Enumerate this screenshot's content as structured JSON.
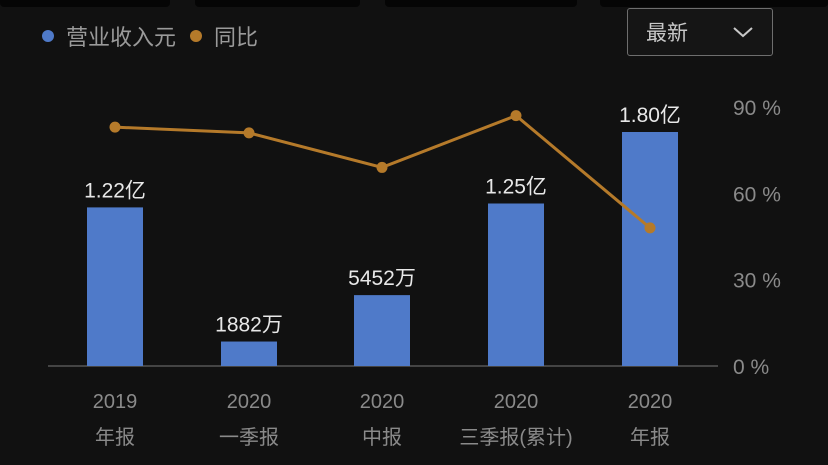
{
  "colors": {
    "background": "#111111",
    "bar": "#4f7ac9",
    "line": "#b57a2a",
    "axis": "#555555",
    "tick_text": "#8a8a8a",
    "label_text": "#e8e8e8"
  },
  "legend": {
    "revenue_label": "营业收入元",
    "yoy_label": "同比"
  },
  "period_select": {
    "value": "最新",
    "icon": "chevron-down-icon"
  },
  "chart_data": {
    "type": "bar",
    "categories": [
      [
        "2019",
        "年报"
      ],
      [
        "2020",
        "一季报"
      ],
      [
        "2020",
        "中报"
      ],
      [
        "2020",
        "三季报(累计)"
      ],
      [
        "2020",
        "年报"
      ]
    ],
    "series": [
      {
        "name": "营业收入元",
        "type": "bar",
        "values": [
          122000000,
          18820000,
          54520000,
          125000000,
          180000000
        ],
        "labels": [
          "1.22亿",
          "1882万",
          "5452万",
          "1.25亿",
          "1.80亿"
        ]
      },
      {
        "name": "同比",
        "type": "line",
        "axis": "right",
        "values": [
          83,
          81,
          69,
          87,
          48
        ]
      }
    ],
    "ylim_right": [
      0,
      90
    ],
    "right_ticks": [
      "0 %",
      "30 %",
      "60 %",
      "90 %"
    ],
    "grid": false,
    "legend_position": "top-left"
  }
}
